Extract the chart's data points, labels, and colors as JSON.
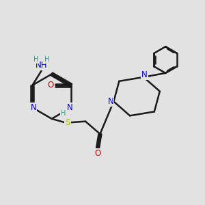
{
  "bg_color": "#e2e2e2",
  "bond_color": "#1a1a1a",
  "bond_width": 1.8,
  "dbo": 0.08,
  "atom_colors": {
    "N": "#0000cc",
    "O": "#cc0000",
    "S": "#b8b800",
    "H": "#4a9090"
  },
  "fs": 8.5,
  "fsH": 7.0
}
